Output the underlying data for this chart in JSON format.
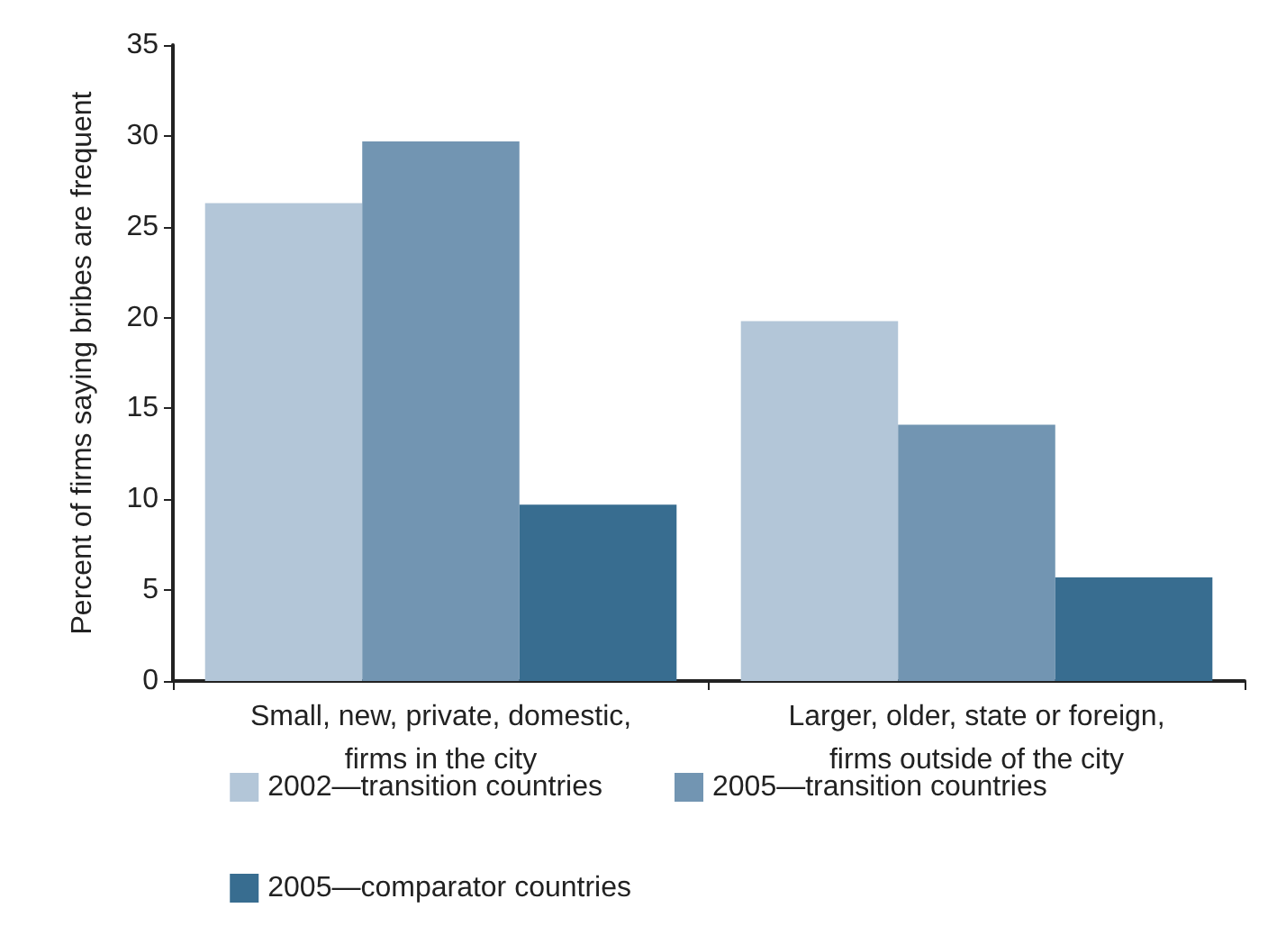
{
  "chart_data": {
    "type": "bar",
    "ylabel": "Percent of firms saying bribes are frequent",
    "categories": [
      "Small, new, private, domestic,\nfirms in the city",
      "Larger, older, state or foreign,\nfirms outside of the city"
    ],
    "series": [
      {
        "name": "2002—transition countries",
        "color": "#b3c6d8",
        "values": [
          26.3,
          19.8
        ]
      },
      {
        "name": "2005—transition countries",
        "color": "#7295b2",
        "values": [
          29.7,
          14.1
        ]
      },
      {
        "name": "2005—comparator countries",
        "color": "#386d90",
        "values": [
          9.7,
          5.7
        ]
      }
    ],
    "ylim": [
      0,
      35
    ],
    "yticks": [
      0,
      5,
      10,
      15,
      20,
      25,
      30,
      35
    ],
    "grid": false,
    "legend": "bottom"
  }
}
